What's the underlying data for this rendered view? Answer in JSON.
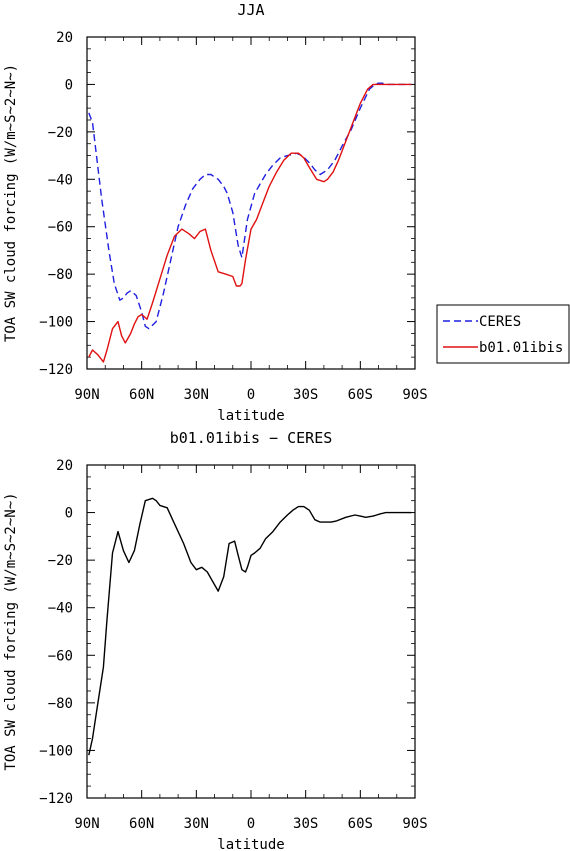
{
  "chart_data": [
    {
      "type": "line",
      "title": "JJA",
      "xlabel": "latitude",
      "ylabel": "TOA SW cloud forcing (W/m~S~2~N~)",
      "xlim": [
        90,
        -90
      ],
      "ylim": [
        -120,
        20
      ],
      "x_ticks": [
        "90N",
        "60N",
        "30N",
        "0",
        "30S",
        "60S",
        "90S"
      ],
      "x_tick_values": [
        90,
        60,
        30,
        0,
        -30,
        -60,
        -90
      ],
      "y_ticks": [
        "20",
        "0",
        "−20",
        "−40",
        "−60",
        "−80",
        "−100",
        "−120"
      ],
      "y_tick_values": [
        20,
        0,
        -20,
        -40,
        -60,
        -80,
        -100,
        -120
      ],
      "legend": "right, outside plot",
      "series": [
        {
          "name": "CERES",
          "color": "#1f1fe0",
          "dash": "dashed",
          "x": [
            89,
            87,
            82,
            78,
            75,
            72,
            70,
            68,
            66,
            63,
            60,
            58,
            56,
            52,
            48,
            44,
            40,
            36,
            32,
            28,
            25,
            22,
            18,
            15,
            13,
            10,
            7,
            5,
            2,
            -2,
            -5,
            -8,
            -12,
            -16,
            -20,
            -25,
            -28,
            -32,
            -35,
            -38,
            -42,
            -46,
            -50,
            -55,
            -60,
            -65,
            -68,
            -70,
            -72,
            -75,
            -78,
            -80,
            -84,
            -88
          ],
          "y": [
            -12,
            -16,
            -48,
            -70,
            -84,
            -91,
            -90,
            -88,
            -87,
            -89,
            -96,
            -102,
            -103,
            -100,
            -88,
            -74,
            -60,
            -51,
            -44,
            -40,
            -38,
            -38,
            -40,
            -43,
            -46,
            -54,
            -68,
            -73,
            -57,
            -46,
            -42,
            -38,
            -34,
            -31,
            -30,
            -29,
            -30,
            -33,
            -36,
            -38,
            -36,
            -32,
            -26,
            -19,
            -10,
            -2,
            0,
            0.5,
            0.5,
            0,
            0,
            0,
            0,
            0
          ]
        },
        {
          "name": "b01.01ibis",
          "color": "#e01010",
          "dash": "solid",
          "x": [
            89,
            87,
            84,
            81,
            79,
            76,
            73,
            71,
            69,
            66,
            64,
            62,
            60,
            57,
            54,
            50,
            46,
            42,
            38,
            34,
            31,
            28,
            25,
            22,
            18,
            14,
            10,
            8,
            6,
            5,
            3,
            0,
            -3,
            -6,
            -10,
            -14,
            -18,
            -22,
            -26,
            -29,
            -32,
            -36,
            -40,
            -42,
            -45,
            -48,
            -52,
            -56,
            -60,
            -64,
            -67,
            -70,
            -72,
            -75,
            -78,
            -82,
            -86,
            -88
          ],
          "y": [
            -115,
            -112,
            -114,
            -117,
            -112,
            -103,
            -100,
            -106,
            -109,
            -105,
            -101,
            -98,
            -97,
            -99,
            -92,
            -82,
            -72,
            -64,
            -61,
            -63,
            -65,
            -62,
            -61,
            -70,
            -79,
            -80,
            -81,
            -85,
            -85,
            -84,
            -74,
            -61,
            -57,
            -51,
            -43,
            -37,
            -32,
            -29,
            -29,
            -31,
            -35,
            -40,
            -41,
            -40,
            -37,
            -32,
            -24,
            -16,
            -8,
            -2,
            0,
            0,
            0,
            0,
            0,
            0,
            0,
            0
          ]
        }
      ]
    },
    {
      "type": "line",
      "title": "b01.01ibis − CERES",
      "xlabel": "latitude",
      "ylabel": "TOA SW cloud forcing (W/m~S~2~N~)",
      "xlim": [
        90,
        -90
      ],
      "ylim": [
        -120,
        20
      ],
      "x_ticks": [
        "90N",
        "60N",
        "30N",
        "0",
        "30S",
        "60S",
        "90S"
      ],
      "x_tick_values": [
        90,
        60,
        30,
        0,
        -30,
        -60,
        -90
      ],
      "y_ticks": [
        "20",
        "0",
        "−20",
        "−40",
        "−60",
        "−80",
        "−100",
        "−120"
      ],
      "y_tick_values": [
        20,
        0,
        -20,
        -40,
        -60,
        -80,
        -100,
        -120
      ],
      "series": [
        {
          "color": "#000000",
          "dash": "solid",
          "x": [
            89,
            87,
            84,
            81,
            79,
            76,
            73,
            70,
            67,
            64,
            61,
            58,
            54,
            52,
            50,
            46,
            43,
            40,
            37,
            33,
            30,
            27,
            24,
            21,
            18,
            15,
            12,
            9,
            7,
            5,
            3,
            2,
            0,
            -2,
            -5,
            -8,
            -12,
            -16,
            -20,
            -23,
            -26,
            -29,
            -32,
            -35,
            -38,
            -41,
            -44,
            -47,
            -52,
            -57,
            -60,
            -63,
            -67,
            -69,
            -71,
            -74,
            -78,
            -83,
            -88
          ],
          "y": [
            -102,
            -95,
            -80,
            -65,
            -45,
            -17,
            -8,
            -16,
            -21,
            -16,
            -5,
            5,
            6,
            5,
            3,
            2,
            -3,
            -8,
            -13,
            -21,
            -24,
            -23,
            -25,
            -29,
            -33,
            -27,
            -13,
            -12,
            -18,
            -24,
            -25,
            -23,
            -18,
            -17,
            -15,
            -11,
            -8,
            -4,
            -1,
            1,
            2.5,
            2.5,
            1,
            -3,
            -4,
            -4,
            -4,
            -3.5,
            -2,
            -1,
            -1.5,
            -2,
            -1.5,
            -1,
            -0.5,
            0,
            0,
            0,
            0
          ]
        }
      ]
    }
  ]
}
